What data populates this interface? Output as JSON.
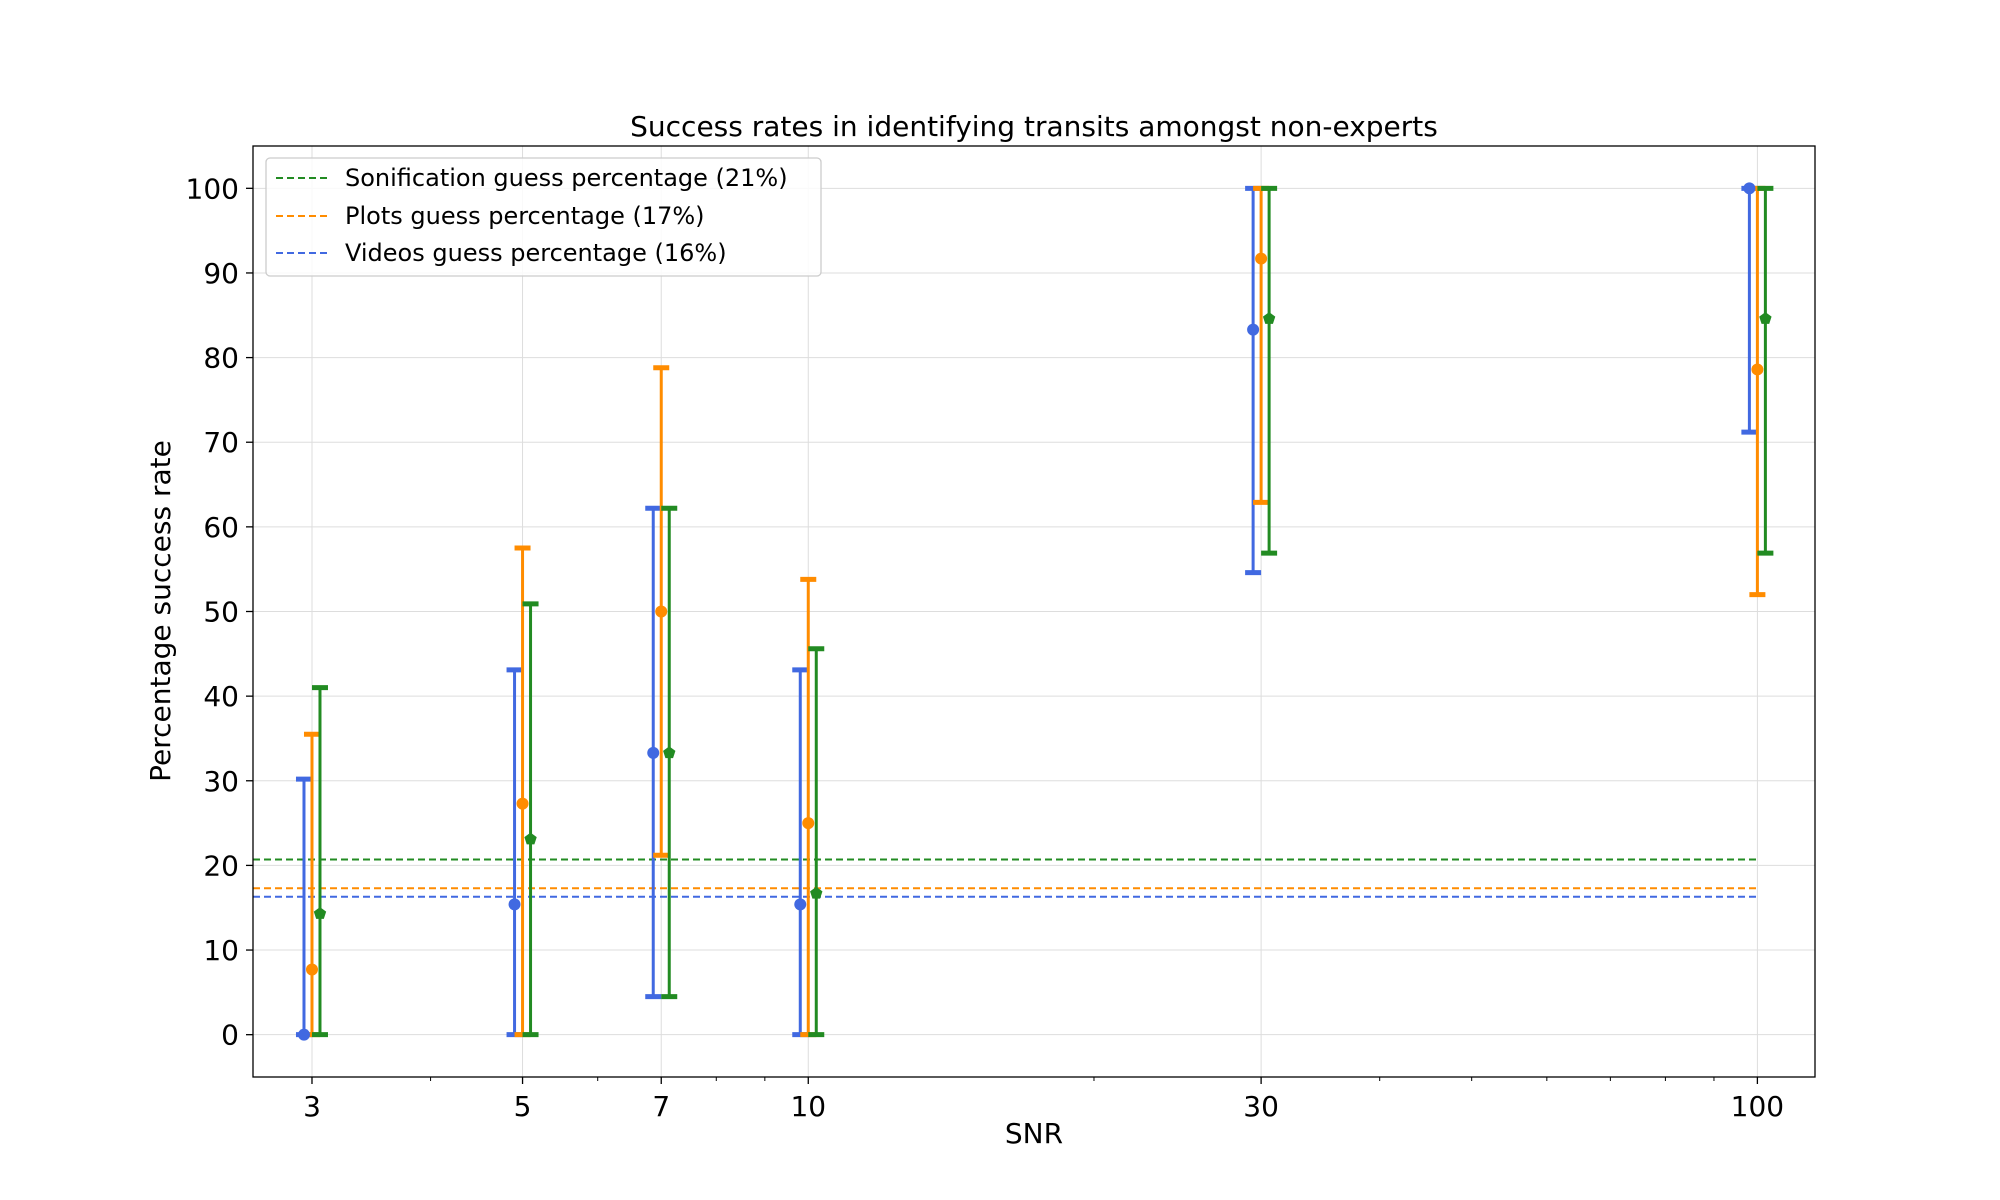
{
  "chart_data": {
    "type": "scatter",
    "title": "Success rates in identifying transits amongst non-experts",
    "xlabel": "SNR",
    "ylabel": "Percentage success rate",
    "xscale": "log",
    "xlim": [
      2.6,
      115
    ],
    "ylim": [
      -5,
      105
    ],
    "xticks": [
      3,
      5,
      7,
      10,
      30,
      100
    ],
    "xtick_labels": [
      "3",
      "5",
      "7",
      "10",
      "30",
      "100"
    ],
    "yticks": [
      0,
      10,
      20,
      30,
      40,
      50,
      60,
      70,
      80,
      90,
      100
    ],
    "ytick_labels": [
      "0",
      "10",
      "20",
      "30",
      "40",
      "50",
      "60",
      "70",
      "80",
      "90",
      "100"
    ],
    "grid": true,
    "legend_position": "top-left",
    "series": [
      {
        "key": "videos",
        "color": "#4169e1",
        "marker": "circle",
        "x": [
          3,
          5,
          7,
          10,
          30,
          100
        ],
        "y": [
          0,
          15.4,
          33.3,
          15.4,
          83.3,
          100
        ],
        "y_low": [
          0,
          0,
          4.5,
          0,
          54.6,
          71.2
        ],
        "y_high": [
          30.2,
          43.1,
          62.2,
          43.1,
          100,
          100
        ]
      },
      {
        "key": "plots",
        "color": "#ff8c00",
        "marker": "circle",
        "x": [
          3,
          5,
          7,
          10,
          30,
          100
        ],
        "y": [
          7.7,
          27.3,
          50,
          25,
          91.7,
          78.6
        ],
        "y_low": [
          0,
          0,
          21.2,
          0,
          62.9,
          52
        ],
        "y_high": [
          35.5,
          57.5,
          78.8,
          53.8,
          100,
          100
        ]
      },
      {
        "key": "sonification",
        "color": "#228b22",
        "marker": "pentagon",
        "x": [
          3,
          5,
          7,
          10,
          30,
          100
        ],
        "y": [
          14.3,
          23.1,
          33.3,
          16.7,
          84.6,
          84.6
        ],
        "y_low": [
          0,
          0,
          4.5,
          0,
          56.9,
          56.9
        ],
        "y_high": [
          41,
          50.9,
          62.2,
          45.6,
          100,
          100
        ]
      }
    ],
    "reference_lines": [
      {
        "label": "Sonification guess percentage (21%)",
        "y": 20.7,
        "color": "#228b22"
      },
      {
        "label": "Plots guess percentage (17%)",
        "y": 17.3,
        "color": "#ff8c00"
      },
      {
        "label": "Videos guess percentage (16%)",
        "y": 16.3,
        "color": "#4169e1"
      }
    ]
  }
}
